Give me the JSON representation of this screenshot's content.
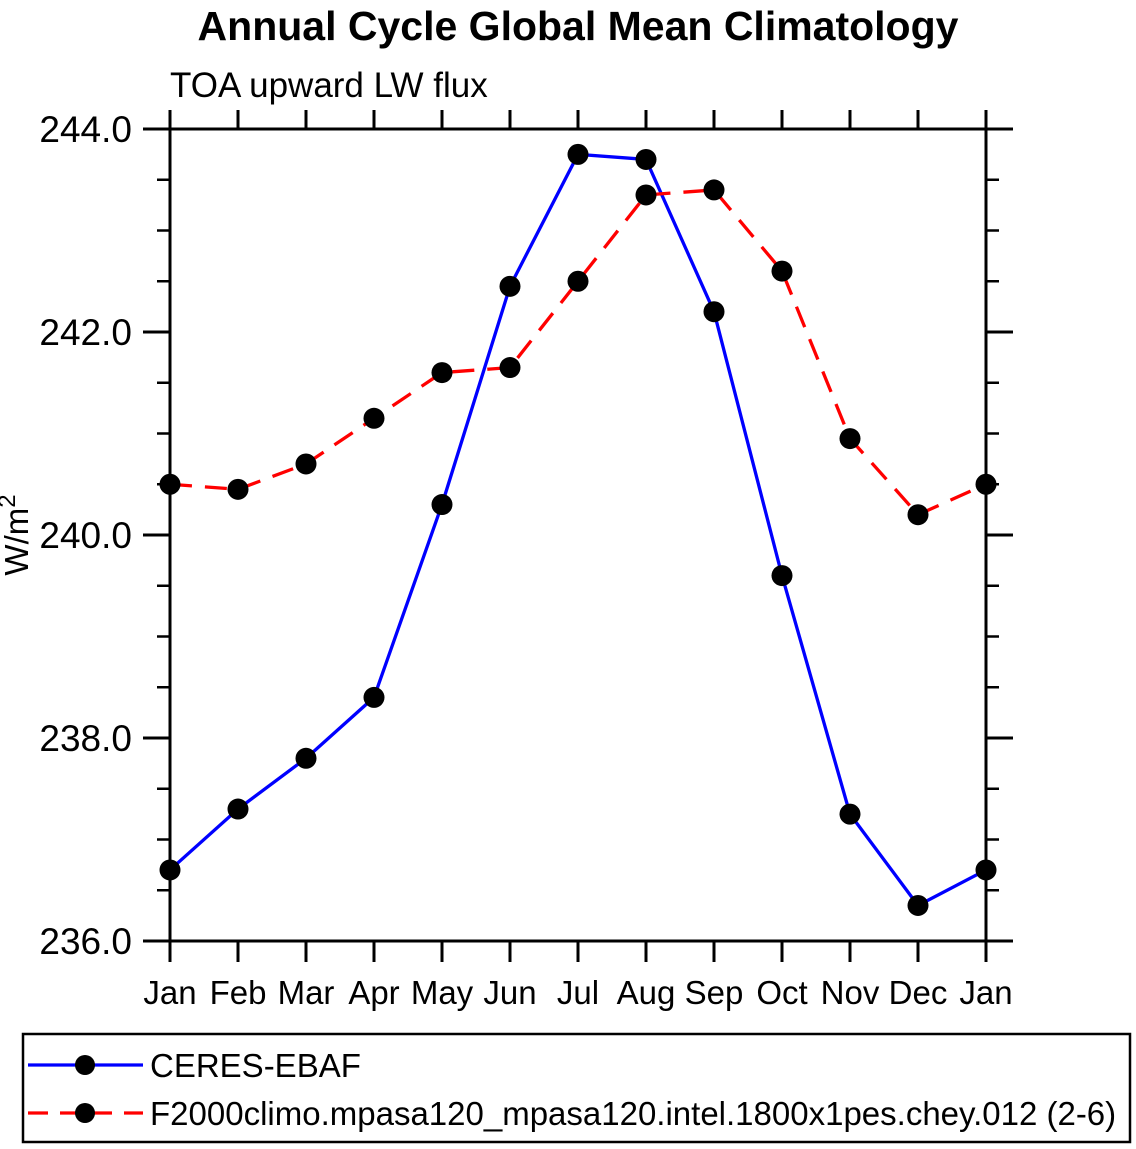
{
  "chart_data": {
    "type": "line",
    "title": "Annual Cycle Global Mean Climatology",
    "subtitle": "TOA upward LW flux",
    "ylabel": "W/m^2",
    "ylabel_base": "W/m",
    "ylabel_exp": "2",
    "x_labels": [
      "Jan",
      "Feb",
      "Mar",
      "Apr",
      "May",
      "Jun",
      "Jul",
      "Aug",
      "Sep",
      "Oct",
      "Nov",
      "Dec",
      "Jan"
    ],
    "ylim": [
      236.0,
      244.0
    ],
    "yticks": [
      236.0,
      238.0,
      240.0,
      242.0,
      244.0
    ],
    "ytick_labels": [
      "236.0",
      "238.0",
      "240.0",
      "242.0",
      "244.0"
    ],
    "minor_tick_step": 0.5,
    "grid": false,
    "legend_position": "bottom",
    "axis_color": "#000000",
    "series": [
      {
        "name": "CERES-EBAF",
        "color": "#0000ff",
        "line_style": "solid",
        "marker": "filled-circle",
        "marker_color": "#000000",
        "values": [
          236.7,
          237.3,
          237.8,
          238.4,
          240.3,
          242.45,
          243.75,
          243.7,
          242.2,
          239.6,
          237.25,
          236.35,
          236.7
        ]
      },
      {
        "name": "F2000climo.mpasa120_mpasa120.intel.1800x1pes.chey.012 (2-6)",
        "color": "#ff0000",
        "line_style": "dashed",
        "marker": "filled-circle",
        "marker_color": "#000000",
        "values": [
          240.5,
          240.45,
          240.7,
          241.15,
          241.6,
          241.65,
          242.5,
          243.35,
          243.4,
          242.6,
          240.95,
          240.2,
          240.5
        ]
      }
    ]
  }
}
